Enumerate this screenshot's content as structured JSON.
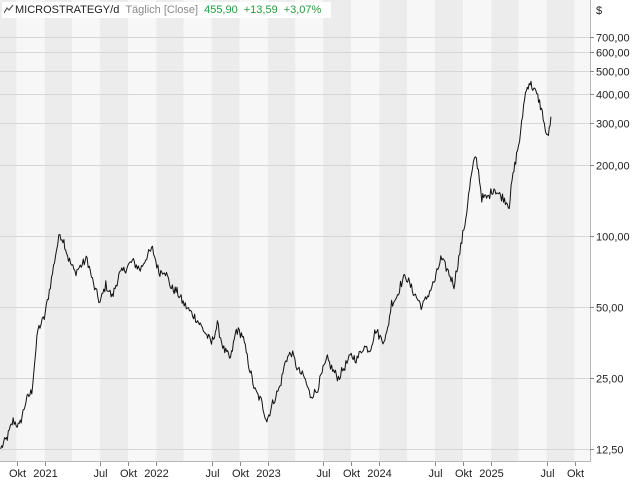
{
  "header": {
    "symbol": "MICROSTRATEGY/d",
    "interval": "Täglich [Close]",
    "last": "455,90",
    "change": "+13,59",
    "change_pct": "+3,07%",
    "icon": "line-chart-icon"
  },
  "currency_symbol": "$",
  "colors": {
    "positive": "#1e9e3a",
    "line": "#111111",
    "band_dark": "#ececec",
    "band_light": "#f7f7f7"
  },
  "chart_data": {
    "type": "line",
    "scale": "log",
    "title": "",
    "xlabel": "",
    "ylabel": "",
    "ylim": [
      11,
      1000
    ],
    "x_range": [
      "2020-08-08",
      "2025-11-20"
    ],
    "grid": true,
    "y_ticks": [
      {
        "value": 700,
        "label": "700,00"
      },
      {
        "value": 600,
        "label": "600,00"
      },
      {
        "value": 500,
        "label": "500,00"
      },
      {
        "value": 400,
        "label": "400,00"
      },
      {
        "value": 300,
        "label": "300,00"
      },
      {
        "value": 200,
        "label": "200,00"
      },
      {
        "value": 100,
        "label": "100,00"
      },
      {
        "value": 50,
        "label": "50,00"
      },
      {
        "value": 25,
        "label": "25,00"
      },
      {
        "value": 12.5,
        "label": "12,50"
      }
    ],
    "x_ticks": [
      {
        "date": "2020-10-01",
        "label": "Okt"
      },
      {
        "date": "2021-01-01",
        "label": "2021"
      },
      {
        "date": "2021-07-01",
        "label": "Jul"
      },
      {
        "date": "2021-10-01",
        "label": "Okt"
      },
      {
        "date": "2022-01-01",
        "label": "2022"
      },
      {
        "date": "2022-07-01",
        "label": "Jul"
      },
      {
        "date": "2022-10-01",
        "label": "Okt"
      },
      {
        "date": "2023-01-01",
        "label": "2023"
      },
      {
        "date": "2023-07-01",
        "label": "Jul"
      },
      {
        "date": "2023-10-01",
        "label": "Okt"
      },
      {
        "date": "2024-01-01",
        "label": "2024"
      },
      {
        "date": "2024-07-01",
        "label": "Jul"
      },
      {
        "date": "2024-10-01",
        "label": "Okt"
      },
      {
        "date": "2025-01-01",
        "label": "2025"
      },
      {
        "date": "2025-07-01",
        "label": "Jul"
      },
      {
        "date": "2025-10-01",
        "label": "Okt"
      }
    ],
    "series": [
      {
        "x": [
          "2020-08-10",
          "2020-09-01",
          "2020-09-20",
          "2020-10-10",
          "2020-11-01",
          "2020-11-20",
          "2020-12-10",
          "2020-12-31",
          "2021-01-20",
          "2021-02-09",
          "2021-02-20",
          "2021-03-05",
          "2021-03-20",
          "2021-04-10",
          "2021-05-01",
          "2021-05-20",
          "2021-06-10",
          "2021-07-01",
          "2021-07-20",
          "2021-08-10",
          "2021-09-01",
          "2021-09-20",
          "2021-10-15",
          "2021-11-10",
          "2021-12-01",
          "2021-12-20",
          "2022-01-10",
          "2022-01-28",
          "2022-02-20",
          "2022-03-10",
          "2022-03-30",
          "2022-04-20",
          "2022-05-10",
          "2022-05-25",
          "2022-06-15",
          "2022-07-01",
          "2022-07-20",
          "2022-08-10",
          "2022-09-01",
          "2022-09-20",
          "2022-10-10",
          "2022-11-01",
          "2022-11-20",
          "2022-12-10",
          "2022-12-29",
          "2023-01-20",
          "2023-02-10",
          "2023-03-01",
          "2023-03-20",
          "2023-04-10",
          "2023-05-01",
          "2023-05-20",
          "2023-06-10",
          "2023-07-01",
          "2023-07-15",
          "2023-08-01",
          "2023-08-20",
          "2023-09-10",
          "2023-10-01",
          "2023-10-20",
          "2023-11-10",
          "2023-12-01",
          "2023-12-20",
          "2024-01-10",
          "2024-01-25",
          "2024-02-10",
          "2024-02-26",
          "2024-03-10",
          "2024-03-27",
          "2024-04-15",
          "2024-05-01",
          "2024-05-20",
          "2024-06-10",
          "2024-07-01",
          "2024-07-20",
          "2024-08-10",
          "2024-09-01",
          "2024-09-20",
          "2024-10-10",
          "2024-10-25",
          "2024-11-10",
          "2024-11-20",
          "2024-12-01",
          "2024-12-20",
          "2025-01-10",
          "2025-01-25",
          "2025-02-10",
          "2025-03-01",
          "2025-03-10",
          "2025-03-25",
          "2025-04-07",
          "2025-04-20",
          "2025-05-05",
          "2025-05-20",
          "2025-06-05",
          "2025-06-20",
          "2025-07-01",
          "2025-07-10",
          "2025-07-15"
        ],
        "values": [
          12.5,
          14,
          16.5,
          15.5,
          20,
          22,
          40,
          45,
          62,
          88,
          102,
          95,
          80,
          70,
          75,
          80,
          62,
          52,
          62,
          55,
          68,
          72,
          78,
          72,
          82,
          88,
          70,
          72,
          60,
          58,
          52,
          48,
          45,
          42,
          38,
          35,
          42,
          33,
          30,
          40,
          38,
          28,
          22,
          20,
          16.5,
          20,
          23,
          30,
          32,
          27,
          25,
          21,
          22,
          27,
          30,
          27,
          25,
          28,
          31,
          30,
          34,
          33,
          40,
          36,
          38,
          52,
          55,
          62,
          68,
          60,
          55,
          50,
          57,
          65,
          80,
          72,
          62,
          85,
          120,
          170,
          220,
          190,
          145,
          145,
          160,
          150,
          145,
          135,
          170,
          220,
          270,
          390,
          450,
          420,
          380,
          320,
          260,
          280,
          320
        ]
      }
    ]
  }
}
